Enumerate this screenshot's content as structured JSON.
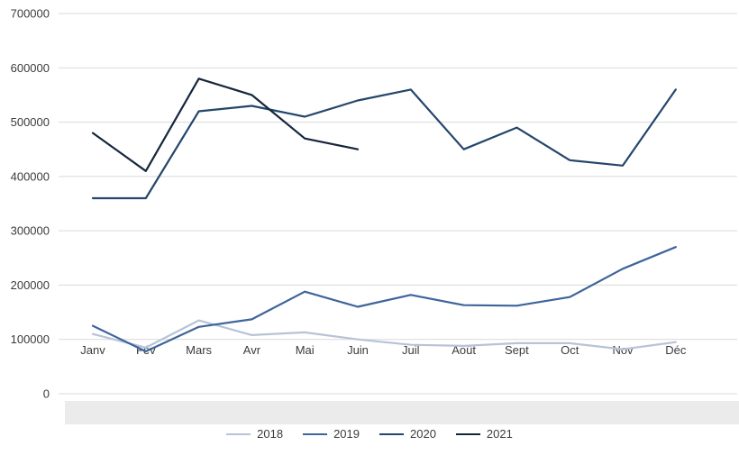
{
  "chart_data": {
    "type": "line",
    "title": "",
    "xlabel": "",
    "ylabel": "",
    "categories": [
      "Janv",
      "Fév",
      "Mars",
      "Avr",
      "Mai",
      "Juin",
      "Juil",
      "Août",
      "Sept",
      "Oct",
      "Nov",
      "Déc"
    ],
    "series": [
      {
        "name": "2018",
        "color": "#b7c3d7",
        "values": [
          110000,
          85000,
          135000,
          108000,
          113000,
          100000,
          90000,
          88000,
          93000,
          93000,
          82000,
          95000
        ]
      },
      {
        "name": "2019",
        "color": "#3e649c",
        "values": [
          125000,
          78000,
          123000,
          137000,
          188000,
          160000,
          182000,
          163000,
          162000,
          178000,
          230000,
          270000
        ]
      },
      {
        "name": "2020",
        "color": "#24466b",
        "values": [
          360000,
          360000,
          520000,
          530000,
          510000,
          540000,
          560000,
          450000,
          490000,
          430000,
          420000,
          560000
        ]
      },
      {
        "name": "2021",
        "color": "#15263c",
        "values": [
          480000,
          410000,
          580000,
          550000,
          470000,
          450000
        ]
      }
    ],
    "y_ticks": [
      0,
      100000,
      200000,
      300000,
      400000,
      500000,
      600000,
      700000
    ],
    "ylim": [
      0,
      700000
    ],
    "grid": true,
    "legend_position": "bottom"
  },
  "colors": {
    "gridline": "#d9d9d9",
    "tick_text": "#3b3b3b",
    "axis_band": "#ebebeb",
    "background": "#ffffff"
  }
}
